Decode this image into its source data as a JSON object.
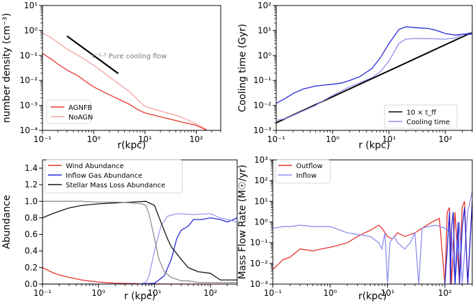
{
  "chart_data": [
    {
      "type": "line",
      "xlabel": "r(kpc)",
      "ylabel": "number density (cm⁻³)",
      "xscale": "log",
      "yscale": "log",
      "xlim": [
        0.1,
        300
      ],
      "ylim": [
        0.0001,
        10
      ],
      "xticks": [
        "10⁻¹",
        "10⁰",
        "10¹",
        "10²"
      ],
      "yticks": [
        "10⁻⁴",
        "10⁻³",
        "10⁻²",
        "10⁻¹",
        "10⁰",
        "10¹"
      ],
      "legend_position": "bottom-left",
      "series": [
        {
          "name": "AGNFB",
          "color": "#e8302a",
          "x": [
            0.1,
            0.15,
            0.2,
            0.3,
            0.5,
            0.7,
            1,
            1.5,
            2,
            3,
            5,
            7,
            10,
            20,
            50,
            100,
            160
          ],
          "y": [
            0.12,
            0.07,
            0.045,
            0.026,
            0.015,
            0.009,
            0.0055,
            0.0036,
            0.0027,
            0.0018,
            0.0011,
            0.0007,
            0.0005,
            0.00035,
            0.00022,
            0.00016,
            0.0001
          ]
        },
        {
          "name": "NoAGN",
          "color": "#f4a0a0",
          "x": [
            0.1,
            0.15,
            0.2,
            0.3,
            0.5,
            0.7,
            1,
            1.5,
            2,
            3,
            5,
            7,
            10,
            20,
            50,
            100,
            160
          ],
          "y": [
            0.8,
            0.5,
            0.33,
            0.18,
            0.1,
            0.065,
            0.04,
            0.022,
            0.014,
            0.0075,
            0.0036,
            0.0018,
            0.0009,
            0.0006,
            0.00035,
            0.00018,
            0.00011
          ]
        }
      ],
      "reference_line": {
        "x": [
          0.3,
          3
        ],
        "y": [
          0.6,
          0.019
        ],
        "color": "#000000"
      },
      "annotation": {
        "label": "r⁻¹·⁵ Pure cooling flow",
        "x": 3.2,
        "y": 0.1
      }
    },
    {
      "type": "line",
      "xlabel": "r (kpc)",
      "ylabel": "Cooling time (Gyr)",
      "xscale": "log",
      "yscale": "log",
      "xlim": [
        0.1,
        300
      ],
      "ylim": [
        0.001,
        100
      ],
      "xticks": [
        "10⁻¹",
        "10⁰",
        "10¹",
        "10²"
      ],
      "yticks": [
        "10⁻³",
        "10⁻²",
        "10⁻¹",
        "10⁰",
        "10¹",
        "10²"
      ],
      "legend_position": "bottom-right",
      "series": [
        {
          "name": "10 × t_ff",
          "color": "#000000",
          "x": [
            0.1,
            300
          ],
          "y": [
            0.002,
            8.5
          ]
        },
        {
          "name": "Cooling time",
          "color": "#8c8cf0",
          "x": [
            0.1,
            0.15,
            0.2,
            0.3,
            0.5,
            0.7,
            1,
            1.5,
            2,
            3,
            5,
            7,
            10,
            15,
            20,
            30,
            50,
            100,
            150,
            200,
            300
          ],
          "y": [
            0.0025,
            0.003,
            0.004,
            0.006,
            0.01,
            0.016,
            0.025,
            0.04,
            0.055,
            0.08,
            0.13,
            0.22,
            0.6,
            3.0,
            4.5,
            4.8,
            4.7,
            4.5,
            5.0,
            7.0,
            8.5
          ]
        },
        {
          "name": "",
          "color": "#2525d8",
          "x": [
            0.1,
            0.15,
            0.2,
            0.3,
            0.5,
            0.7,
            1,
            1.5,
            2,
            3,
            5,
            7,
            10,
            15,
            20,
            30,
            50,
            70,
            100,
            150,
            200,
            300
          ],
          "y": [
            0.012,
            0.02,
            0.03,
            0.045,
            0.06,
            0.065,
            0.07,
            0.08,
            0.1,
            0.14,
            0.3,
            0.8,
            3.0,
            11,
            14,
            13,
            12,
            10,
            7.5,
            6.5,
            7.0,
            7.0
          ]
        }
      ],
      "legend_items": [
        "10 × t_ff",
        "Cooling time"
      ]
    },
    {
      "type": "line",
      "xlabel": "r (kpc)",
      "ylabel": "Abundance",
      "xscale": "log",
      "yscale": "linear",
      "xlim": [
        0.1,
        300
      ],
      "ylim": [
        0,
        1.5
      ],
      "xticks": [
        "10⁻¹",
        "10⁰",
        "10¹",
        "10²"
      ],
      "yticks": [
        "0.0",
        "0.2",
        "0.4",
        "0.6",
        "0.8",
        "1.0",
        "1.2",
        "1.4"
      ],
      "legend_position": "top-left",
      "series": [
        {
          "name": "Wind Abundance",
          "color": "#e8302a",
          "x": [
            0.1,
            0.15,
            0.2,
            0.3,
            0.5,
            1,
            2,
            5,
            10,
            20,
            300
          ],
          "y": [
            0.2,
            0.14,
            0.11,
            0.08,
            0.05,
            0.025,
            0.012,
            0.006,
            0.003,
            0.001,
            0
          ]
        },
        {
          "name": "Inflow Gas Abundance",
          "color": "#2525d8",
          "x": [
            0.1,
            5,
            10,
            15,
            20,
            25,
            30,
            40,
            50,
            70,
            100,
            150,
            200,
            300
          ],
          "y": [
            0,
            0,
            0.01,
            0.1,
            0.3,
            0.55,
            0.65,
            0.7,
            0.78,
            0.78,
            0.8,
            0.78,
            0.75,
            0.8
          ]
        },
        {
          "name": "",
          "color": "#9a9aee",
          "x": [
            0.1,
            5,
            7,
            8,
            10,
            13,
            17,
            25,
            50,
            100,
            150,
            200,
            300
          ],
          "y": [
            0,
            0,
            0.02,
            0.1,
            0.4,
            0.7,
            0.82,
            0.85,
            0.84,
            0.85,
            0.8,
            0.78,
            0.75
          ]
        },
        {
          "name": "Stellar Mass Loss Abundance",
          "color": "#111111",
          "x": [
            0.1,
            0.15,
            0.2,
            0.3,
            0.5,
            1,
            2,
            4,
            7,
            10,
            13,
            17,
            20,
            30,
            40,
            60,
            100,
            150,
            300
          ],
          "y": [
            0.8,
            0.85,
            0.88,
            0.92,
            0.95,
            0.97,
            0.98,
            0.99,
            1.0,
            0.95,
            0.75,
            0.55,
            0.45,
            0.3,
            0.2,
            0.15,
            0.13,
            0.05,
            0.05
          ]
        },
        {
          "name": "",
          "color": "#8c8c8c",
          "x": [
            0.1,
            0.2,
            0.5,
            1,
            2,
            4,
            6,
            7,
            8,
            10,
            12,
            15,
            20,
            30,
            40,
            60,
            100,
            300
          ],
          "y": [
            1.0,
            1.0,
            1.0,
            0.99,
            0.99,
            0.98,
            0.97,
            0.95,
            0.85,
            0.55,
            0.3,
            0.15,
            0.08,
            0.04,
            0.04,
            0.02,
            0.02,
            0.02
          ]
        }
      ]
    },
    {
      "type": "line",
      "xlabel": "r(kpc)",
      "ylabel": "Mass Flow Rate (M☉/yr)",
      "xscale": "log",
      "yscale": "log",
      "xlim": [
        0.1,
        300
      ],
      "ylim": [
        0.001,
        1000
      ],
      "xticks": [
        "10⁻¹",
        "10⁰",
        "10¹",
        "10²"
      ],
      "yticks": [
        "10⁻³",
        "10⁻²",
        "10⁻¹",
        "10⁰",
        "10¹",
        "10²",
        "10³"
      ],
      "legend_position": "top-left",
      "series": [
        {
          "name": "Outflow",
          "color": "#e8302a",
          "x": [
            0.1,
            0.15,
            0.2,
            0.3,
            0.5,
            0.7,
            1,
            1.5,
            2,
            3,
            5,
            7,
            8,
            10,
            12,
            15,
            20,
            30,
            40,
            60,
            80,
            100,
            110,
            120,
            130,
            150,
            180,
            200,
            220,
            250,
            300
          ],
          "y": [
            0.005,
            0.015,
            0.02,
            0.05,
            0.04,
            0.05,
            0.06,
            0.08,
            0.1,
            0.2,
            0.4,
            0.7,
            0.5,
            0.2,
            0.15,
            0.3,
            0.2,
            0.3,
            0.5,
            1.0,
            1.5,
            0.001,
            3.0,
            5.0,
            0.001,
            3.0,
            0.001,
            5.0,
            10.0,
            0.001,
            10.0
          ]
        },
        {
          "name": "Inflow",
          "color": "#8c8cf0",
          "x": [
            0.1,
            0.15,
            0.2,
            0.3,
            0.5,
            0.7,
            1,
            1.5,
            2,
            3,
            5,
            7,
            8,
            9,
            10,
            11,
            13,
            15,
            20,
            25,
            30,
            35,
            40,
            50,
            70,
            100,
            130,
            150,
            180,
            200,
            250,
            300
          ],
          "y": [
            0.5,
            0.6,
            0.6,
            0.7,
            0.6,
            0.6,
            0.6,
            0.4,
            0.3,
            0.25,
            0.2,
            0.1,
            0.05,
            0.3,
            0.001,
            0.1,
            0.2,
            0.1,
            0.05,
            0.1,
            0.3,
            0.001,
            0.5,
            0.6,
            0.7,
            0.5,
            0.3,
            0.001,
            1.0,
            0.001,
            3.0,
            30.0
          ]
        },
        {
          "name": "",
          "color": "#2525d8",
          "x": [
            100,
            110,
            120,
            125,
            130,
            140,
            150,
            170,
            180,
            200,
            220,
            250,
            300
          ],
          "y": [
            0.001,
            0.05,
            3.0,
            0.001,
            0.5,
            3.0,
            0.001,
            1.0,
            0.001,
            0.5,
            5.0,
            0.001,
            10.0
          ]
        }
      ]
    }
  ]
}
